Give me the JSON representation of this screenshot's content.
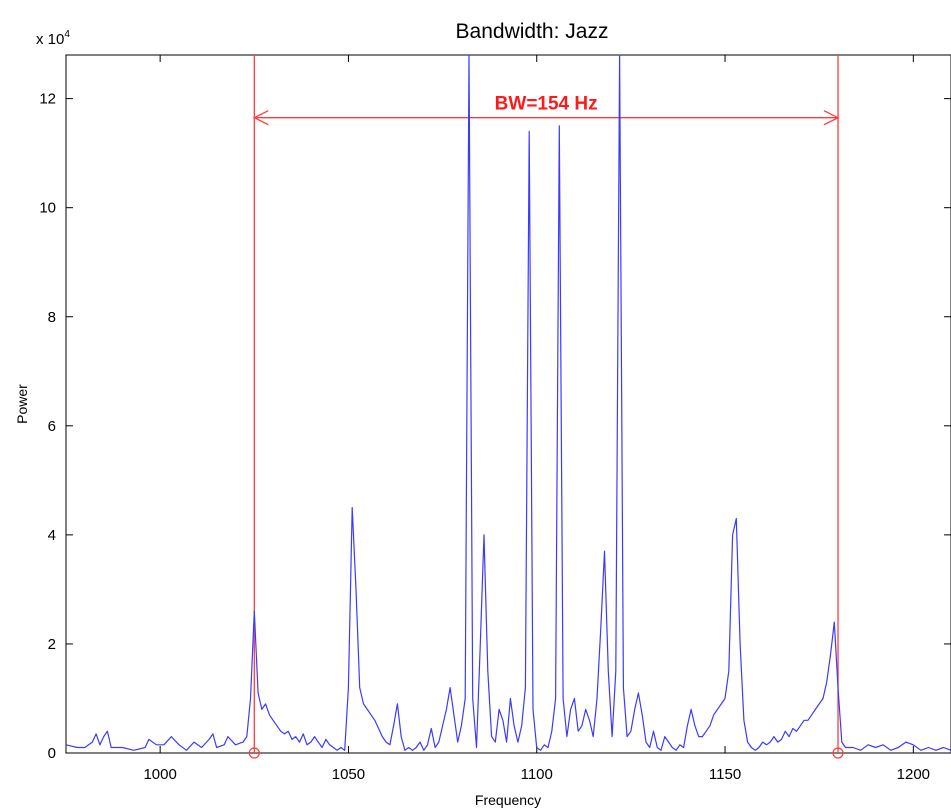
{
  "chart_data": {
    "type": "line",
    "title": "Bandwidth: Jazz",
    "xlabel": "Frequency",
    "ylabel": "Power",
    "y_scale_label": "x 10",
    "y_scale_exponent": "4",
    "xlim": [
      975,
      1210
    ],
    "ylim": [
      0,
      12.8
    ],
    "x_ticks": [
      1000,
      1050,
      1100,
      1150,
      1200
    ],
    "x_tick_labels": [
      "1000",
      "1050",
      "1100",
      "1150",
      "1200"
    ],
    "y_ticks": [
      0,
      2,
      4,
      6,
      8,
      10,
      12
    ],
    "y_tick_labels": [
      "0",
      "2",
      "4",
      "6",
      "8",
      "10",
      "12"
    ],
    "grid": false,
    "series": [
      {
        "color": "#3b3bff",
        "points": [
          [
            975,
            0.15
          ],
          [
            978,
            0.1
          ],
          [
            980,
            0.1
          ],
          [
            982,
            0.2
          ],
          [
            983,
            0.35
          ],
          [
            984,
            0.15
          ],
          [
            985,
            0.3
          ],
          [
            986,
            0.4
          ],
          [
            987,
            0.1
          ],
          [
            990,
            0.1
          ],
          [
            993,
            0.05
          ],
          [
            996,
            0.1
          ],
          [
            997,
            0.25
          ],
          [
            999,
            0.15
          ],
          [
            1001,
            0.15
          ],
          [
            1003,
            0.3
          ],
          [
            1005,
            0.15
          ],
          [
            1007,
            0.05
          ],
          [
            1009,
            0.2
          ],
          [
            1011,
            0.1
          ],
          [
            1013,
            0.25
          ],
          [
            1014,
            0.35
          ],
          [
            1015,
            0.1
          ],
          [
            1017,
            0.15
          ],
          [
            1018,
            0.3
          ],
          [
            1020,
            0.15
          ],
          [
            1022,
            0.2
          ],
          [
            1023,
            0.3
          ],
          [
            1024,
            1.0
          ],
          [
            1025,
            2.6
          ],
          [
            1026,
            1.1
          ],
          [
            1027,
            0.8
          ],
          [
            1028,
            0.9
          ],
          [
            1029,
            0.7
          ],
          [
            1030,
            0.6
          ],
          [
            1031,
            0.5
          ],
          [
            1032,
            0.4
          ],
          [
            1033,
            0.35
          ],
          [
            1034,
            0.4
          ],
          [
            1035,
            0.25
          ],
          [
            1036,
            0.3
          ],
          [
            1037,
            0.2
          ],
          [
            1038,
            0.35
          ],
          [
            1039,
            0.15
          ],
          [
            1040,
            0.2
          ],
          [
            1041,
            0.3
          ],
          [
            1042,
            0.2
          ],
          [
            1043,
            0.1
          ],
          [
            1044,
            0.25
          ],
          [
            1045,
            0.15
          ],
          [
            1046,
            0.1
          ],
          [
            1047,
            0.05
          ],
          [
            1048,
            0.1
          ],
          [
            1049,
            0.05
          ],
          [
            1050,
            1.2
          ],
          [
            1051,
            4.5
          ],
          [
            1052,
            3.0
          ],
          [
            1053,
            1.2
          ],
          [
            1054,
            0.9
          ],
          [
            1055,
            0.8
          ],
          [
            1056,
            0.7
          ],
          [
            1057,
            0.6
          ],
          [
            1058,
            0.45
          ],
          [
            1059,
            0.3
          ],
          [
            1060,
            0.2
          ],
          [
            1061,
            0.15
          ],
          [
            1062,
            0.5
          ],
          [
            1063,
            0.9
          ],
          [
            1064,
            0.3
          ],
          [
            1065,
            0.05
          ],
          [
            1066,
            0.1
          ],
          [
            1067,
            0.05
          ],
          [
            1068,
            0.1
          ],
          [
            1069,
            0.2
          ],
          [
            1070,
            0.05
          ],
          [
            1071,
            0.15
          ],
          [
            1072,
            0.45
          ],
          [
            1073,
            0.1
          ],
          [
            1074,
            0.2
          ],
          [
            1075,
            0.5
          ],
          [
            1076,
            0.8
          ],
          [
            1077,
            1.2
          ],
          [
            1078,
            0.7
          ],
          [
            1079,
            0.2
          ],
          [
            1080,
            0.5
          ],
          [
            1081,
            1.0
          ],
          [
            1082,
            12.8
          ],
          [
            1083,
            1.0
          ],
          [
            1084,
            0.1
          ],
          [
            1085,
            2.0
          ],
          [
            1086,
            4.0
          ],
          [
            1087,
            1.5
          ],
          [
            1088,
            0.3
          ],
          [
            1089,
            0.2
          ],
          [
            1090,
            0.8
          ],
          [
            1091,
            0.6
          ],
          [
            1092,
            0.2
          ],
          [
            1093,
            1.0
          ],
          [
            1094,
            0.5
          ],
          [
            1095,
            0.2
          ],
          [
            1096,
            0.5
          ],
          [
            1097,
            1.2
          ],
          [
            1098,
            11.4
          ],
          [
            1099,
            0.8
          ],
          [
            1100,
            0.1
          ],
          [
            1101,
            0.05
          ],
          [
            1102,
            0.15
          ],
          [
            1103,
            0.1
          ],
          [
            1104,
            0.4
          ],
          [
            1105,
            1.0
          ],
          [
            1106,
            11.5
          ],
          [
            1107,
            1.0
          ],
          [
            1108,
            0.3
          ],
          [
            1109,
            0.8
          ],
          [
            1110,
            1.0
          ],
          [
            1111,
            0.4
          ],
          [
            1112,
            0.5
          ],
          [
            1113,
            0.8
          ],
          [
            1114,
            0.6
          ],
          [
            1115,
            0.3
          ],
          [
            1116,
            1.0
          ],
          [
            1117,
            2.3
          ],
          [
            1118,
            3.7
          ],
          [
            1119,
            1.5
          ],
          [
            1120,
            0.3
          ],
          [
            1121,
            1.5
          ],
          [
            1122,
            12.8
          ],
          [
            1123,
            1.2
          ],
          [
            1124,
            0.3
          ],
          [
            1125,
            0.4
          ],
          [
            1126,
            0.8
          ],
          [
            1127,
            1.1
          ],
          [
            1128,
            0.7
          ],
          [
            1129,
            0.2
          ],
          [
            1130,
            0.1
          ],
          [
            1131,
            0.4
          ],
          [
            1132,
            0.1
          ],
          [
            1133,
            0.05
          ],
          [
            1134,
            0.3
          ],
          [
            1135,
            0.2
          ],
          [
            1136,
            0.1
          ],
          [
            1137,
            0.05
          ],
          [
            1138,
            0.15
          ],
          [
            1139,
            0.1
          ],
          [
            1140,
            0.5
          ],
          [
            1141,
            0.8
          ],
          [
            1142,
            0.5
          ],
          [
            1143,
            0.3
          ],
          [
            1144,
            0.3
          ],
          [
            1145,
            0.4
          ],
          [
            1146,
            0.5
          ],
          [
            1147,
            0.7
          ],
          [
            1148,
            0.8
          ],
          [
            1149,
            0.9
          ],
          [
            1150,
            1.0
          ],
          [
            1151,
            1.5
          ],
          [
            1152,
            4.0
          ],
          [
            1153,
            4.3
          ],
          [
            1154,
            2.0
          ],
          [
            1155,
            0.6
          ],
          [
            1156,
            0.2
          ],
          [
            1157,
            0.1
          ],
          [
            1158,
            0.05
          ],
          [
            1159,
            0.1
          ],
          [
            1160,
            0.2
          ],
          [
            1161,
            0.15
          ],
          [
            1162,
            0.2
          ],
          [
            1163,
            0.3
          ],
          [
            1164,
            0.2
          ],
          [
            1165,
            0.25
          ],
          [
            1166,
            0.4
          ],
          [
            1167,
            0.3
          ],
          [
            1168,
            0.45
          ],
          [
            1169,
            0.4
          ],
          [
            1170,
            0.5
          ],
          [
            1171,
            0.6
          ],
          [
            1172,
            0.6
          ],
          [
            1173,
            0.7
          ],
          [
            1174,
            0.8
          ],
          [
            1175,
            0.9
          ],
          [
            1176,
            1.0
          ],
          [
            1177,
            1.3
          ],
          [
            1178,
            1.8
          ],
          [
            1179,
            2.4
          ],
          [
            1180,
            1.2
          ],
          [
            1181,
            0.2
          ],
          [
            1182,
            0.1
          ],
          [
            1184,
            0.1
          ],
          [
            1186,
            0.05
          ],
          [
            1188,
            0.15
          ],
          [
            1190,
            0.1
          ],
          [
            1192,
            0.15
          ],
          [
            1194,
            0.05
          ],
          [
            1196,
            0.1
          ],
          [
            1198,
            0.2
          ],
          [
            1200,
            0.15
          ],
          [
            1202,
            0.05
          ],
          [
            1204,
            0.1
          ],
          [
            1206,
            0.05
          ],
          [
            1208,
            0.1
          ],
          [
            1210,
            0.05
          ]
        ]
      }
    ],
    "annotations": {
      "bandwidth_label": "BW=154 Hz",
      "color": "#ff3b3b",
      "left_edge_x": 1025,
      "right_edge_x": 1180,
      "arrow_y": 11.65
    }
  }
}
